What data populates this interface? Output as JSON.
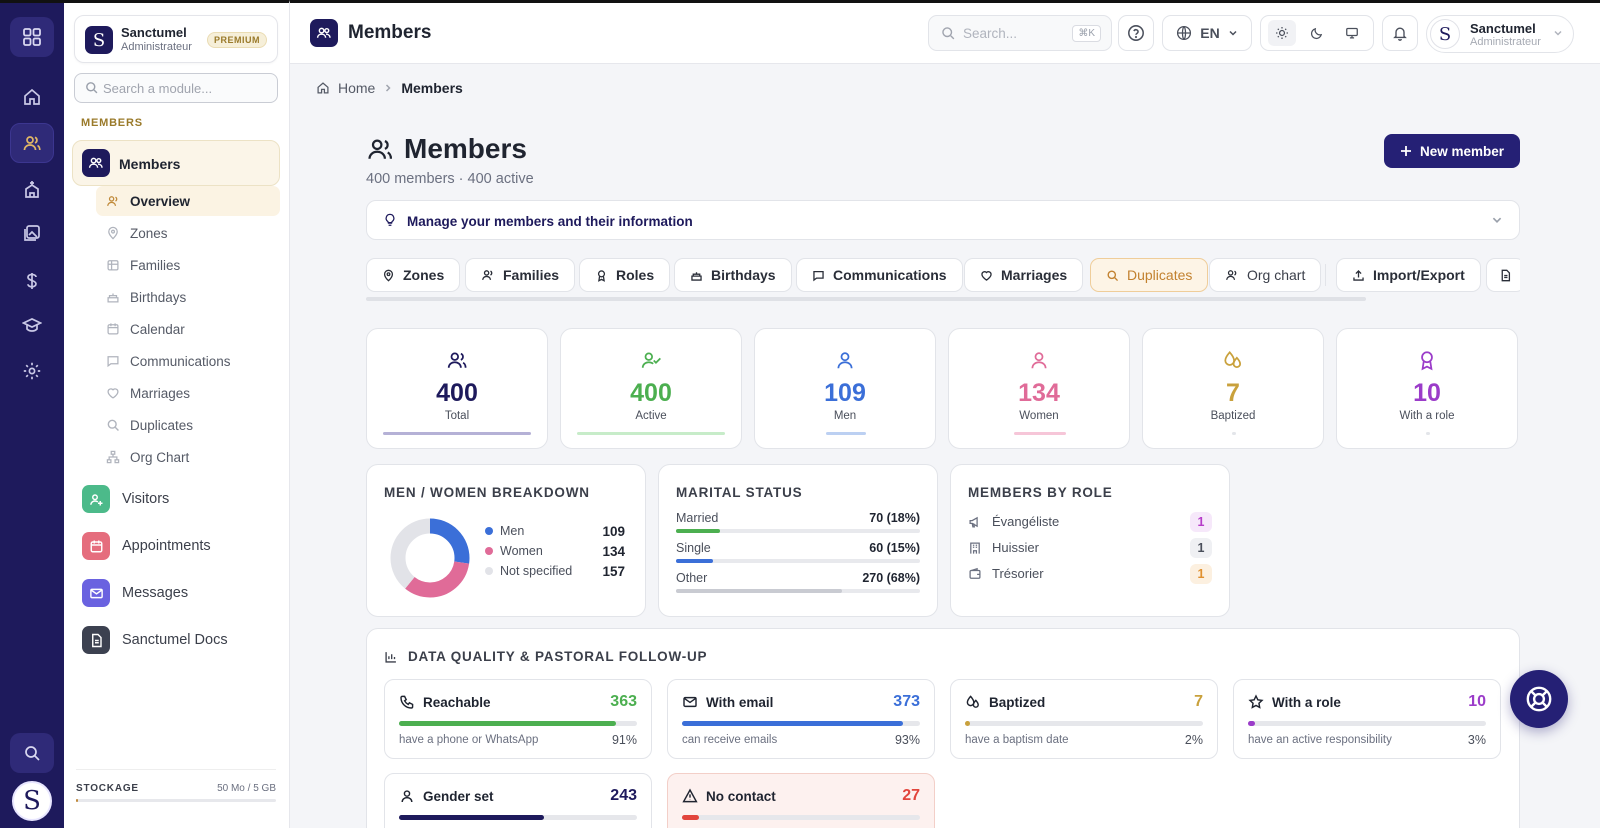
{
  "colors": {
    "brand": "#1e1a5c",
    "accent": "#c08a3a",
    "men": "#3b6fd8",
    "women": "#e06b98",
    "active": "#4caf50",
    "baptized": "#c9a13c",
    "role": "#9b3cc9",
    "danger": "#e2453c"
  },
  "org": {
    "name": "Sanctumel",
    "role": "Administrateur",
    "badge": "PREMIUM",
    "logo_letter": "S"
  },
  "module_search": {
    "placeholder": "Search a module..."
  },
  "section_label": "MEMBERS",
  "nav_main": {
    "label": "Members"
  },
  "sub_items": [
    {
      "label": "Overview",
      "icon": "users-icon"
    },
    {
      "label": "Zones",
      "icon": "map-pin-icon"
    },
    {
      "label": "Families",
      "icon": "families-icon"
    },
    {
      "label": "Birthdays",
      "icon": "cake-icon"
    },
    {
      "label": "Calendar",
      "icon": "calendar-icon"
    },
    {
      "label": "Communications",
      "icon": "message-square-icon"
    },
    {
      "label": "Marriages",
      "icon": "heart-icon"
    },
    {
      "label": "Duplicates",
      "icon": "search-icon"
    },
    {
      "label": "Org Chart",
      "icon": "org-chart-icon"
    }
  ],
  "modules": [
    {
      "label": "Visitors",
      "icon": "user-plus-icon",
      "color": "#4cba8a"
    },
    {
      "label": "Appointments",
      "icon": "calendar-icon",
      "color": "#e56d7d"
    },
    {
      "label": "Messages",
      "icon": "mail-icon",
      "color": "#6a62e0"
    },
    {
      "label": "Sanctumel Docs",
      "icon": "document-icon",
      "color": "#3c4150"
    }
  ],
  "storage": {
    "label": "STOCKAGE",
    "usage": "50 Mo / 5 GB",
    "used_fraction": 0.01
  },
  "rail_avatar_letter": "S",
  "topbar": {
    "title": "Members",
    "search_placeholder": "Search...",
    "search_shortcut": "⌘K",
    "language": "EN",
    "user_name": "Sanctumel",
    "user_role": "Administrateur",
    "user_letter": "S"
  },
  "breadcrumb": {
    "home": "Home",
    "current": "Members"
  },
  "page": {
    "title": "Members",
    "subtitle": "400 members · 400 active",
    "new_button": "New member",
    "banner": "Manage your members and their information"
  },
  "tabs": [
    {
      "label": "Zones",
      "icon": "map-pin-icon"
    },
    {
      "label": "Families",
      "icon": "families-icon"
    },
    {
      "label": "Roles",
      "icon": "award-icon"
    },
    {
      "label": "Birthdays",
      "icon": "cake-icon"
    },
    {
      "label": "Communications",
      "icon": "message-square-icon"
    },
    {
      "label": "Marriages",
      "icon": "heart-icon"
    },
    {
      "label": "Duplicates",
      "icon": "search-icon"
    },
    {
      "label": "Org chart",
      "icon": "org-chart-icon"
    },
    {
      "label": "Import/Export",
      "icon": "upload-icon"
    }
  ],
  "stats": [
    {
      "value": "400",
      "label": "Total",
      "color": "#1e1a5c",
      "icon": "users-icon"
    },
    {
      "value": "400",
      "label": "Active",
      "color": "#4caf50",
      "icon": "user-check-icon"
    },
    {
      "value": "109",
      "label": "Men",
      "color": "#3b6fd8",
      "icon": "user-icon"
    },
    {
      "value": "134",
      "label": "Women",
      "color": "#e06b98",
      "icon": "user-icon"
    },
    {
      "value": "7",
      "label": "Baptized",
      "color": "#c9a13c",
      "icon": "droplets-icon"
    },
    {
      "value": "10",
      "label": "With a role",
      "color": "#9b3cc9",
      "icon": "award-icon"
    }
  ],
  "gender": {
    "title": "MEN / WOMEN BREAKDOWN",
    "items": [
      {
        "label": "Men",
        "value": 109,
        "color": "#3b6fd8"
      },
      {
        "label": "Women",
        "value": 134,
        "color": "#e06b98"
      },
      {
        "label": "Not specified",
        "value": 157,
        "color": "#e2e3e8"
      }
    ]
  },
  "marital": {
    "title": "MARITAL STATUS",
    "items": [
      {
        "label": "Married",
        "value": "70 (18%)",
        "fraction": 0.18,
        "color": "#4caf50"
      },
      {
        "label": "Single",
        "value": "60 (15%)",
        "fraction": 0.15,
        "color": "#3b6fd8"
      },
      {
        "label": "Other",
        "value": "270 (68%)",
        "fraction": 0.68,
        "color": "#c9cbd2"
      }
    ]
  },
  "roles": {
    "title": "MEMBERS BY ROLE",
    "items": [
      {
        "label": "Évangéliste",
        "count": "1",
        "icon": "megaphone-icon",
        "color": "#b63cc9",
        "bg": "#f6e8fa"
      },
      {
        "label": "Huissier",
        "count": "1",
        "icon": "building-icon",
        "color": "#4a4f5b",
        "bg": "#eff0f3"
      },
      {
        "label": "Trésorier",
        "count": "1",
        "icon": "wallet-icon",
        "color": "#e0902f",
        "bg": "#fcf0e0"
      }
    ]
  },
  "data_quality": {
    "title": "DATA QUALITY & PASTORAL FOLLOW-UP",
    "items": [
      {
        "label": "Reachable",
        "value": "363",
        "desc": "have a phone or WhatsApp",
        "pct": "91%",
        "fraction": 0.91,
        "color": "#4caf50",
        "icon": "phone-icon"
      },
      {
        "label": "With email",
        "value": "373",
        "desc": "can receive emails",
        "pct": "93%",
        "fraction": 0.93,
        "color": "#3b6fd8",
        "icon": "mail-icon"
      },
      {
        "label": "Baptized",
        "value": "7",
        "desc": "have a baptism date",
        "pct": "2%",
        "fraction": 0.02,
        "color": "#c9a13c",
        "icon": "droplets-icon"
      },
      {
        "label": "With a role",
        "value": "10",
        "desc": "have an active responsibility",
        "pct": "3%",
        "fraction": 0.03,
        "color": "#9b3cc9",
        "icon": "star-icon"
      },
      {
        "label": "Gender set",
        "value": "243",
        "desc": "",
        "pct": "",
        "fraction": 0.61,
        "color": "#1e1a5c",
        "icon": "user-icon"
      },
      {
        "label": "No contact",
        "value": "27",
        "desc": "",
        "pct": "",
        "fraction": 0.07,
        "color": "#e2453c",
        "icon": "alert-triangle-icon"
      }
    ]
  }
}
